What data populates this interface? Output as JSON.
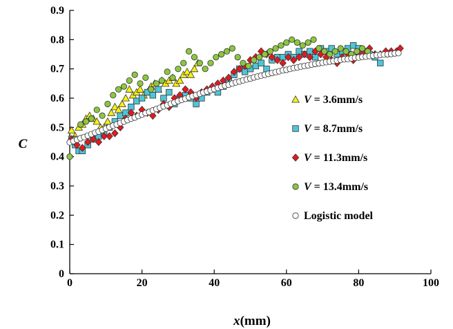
{
  "chart_data": {
    "type": "scatter",
    "xlabel_var": "x",
    "xlabel_unit": "(mm)",
    "ylabel": "C",
    "xlim": [
      0,
      100
    ],
    "ylim": [
      0,
      0.9
    ],
    "xticks": [
      "0",
      "20",
      "40",
      "60",
      "80",
      "100"
    ],
    "yticks": [
      "0",
      "0.1",
      "0.2",
      "0.3",
      "0.4",
      "0.5",
      "0.6",
      "0.7",
      "0.8",
      "0.9"
    ],
    "grid": false,
    "legend_position": "right",
    "series": [
      {
        "legend_var": "V",
        "legend_rest": " = 3.6mm/s",
        "marker": "triangle",
        "color": "#f5f011",
        "x": [
          0.5,
          1.5,
          2.5,
          3.5,
          4.5,
          5.5,
          6.5,
          7.5,
          8.5,
          9.5,
          10.5,
          11.5,
          12.5,
          13.5,
          14.5,
          15.5,
          16.5,
          17.5,
          18.5,
          19.5,
          20.5,
          21.5,
          22.5,
          23.5,
          24.5,
          25.5,
          26.5,
          27.5,
          28.5,
          29.5,
          30.5,
          31.5,
          32.5,
          33.5,
          34.5,
          35.5
        ],
        "y": [
          0.49,
          0.47,
          0.5,
          0.51,
          0.53,
          0.54,
          0.53,
          0.52,
          0.5,
          0.5,
          0.52,
          0.55,
          0.57,
          0.56,
          0.58,
          0.6,
          0.63,
          0.61,
          0.62,
          0.63,
          0.61,
          0.62,
          0.64,
          0.65,
          0.63,
          0.66,
          0.65,
          0.66,
          0.67,
          0.65,
          0.66,
          0.68,
          0.69,
          0.68,
          0.7,
          0.72
        ]
      },
      {
        "legend_var": "V",
        "legend_rest": " = 8.7mm/s",
        "marker": "square",
        "color": "#4fc4d8",
        "x": [
          0.5,
          1.5,
          2.5,
          3.5,
          5,
          6.5,
          8,
          9.5,
          11,
          12.5,
          14,
          15.5,
          17,
          18.5,
          20,
          21.5,
          23,
          24.5,
          26,
          27.5,
          29,
          30.5,
          32,
          33.5,
          35,
          36.5,
          38,
          39.5,
          41,
          42.5,
          44,
          45.5,
          47,
          48.5,
          50,
          51.5,
          53,
          54.5,
          56,
          57.5,
          59,
          60.5,
          62,
          63.5,
          65,
          66.5,
          68,
          69.5,
          71,
          72.5,
          74,
          75.5,
          77,
          78.5,
          80,
          81.5,
          83,
          84.5,
          86
        ],
        "y": [
          0.46,
          0.44,
          0.42,
          0.42,
          0.44,
          0.46,
          0.47,
          0.48,
          0.5,
          0.52,
          0.54,
          0.55,
          0.57,
          0.59,
          0.6,
          0.62,
          0.61,
          0.63,
          0.6,
          0.62,
          0.58,
          0.6,
          0.61,
          0.6,
          0.58,
          0.6,
          0.62,
          0.63,
          0.62,
          0.64,
          0.66,
          0.68,
          0.7,
          0.69,
          0.7,
          0.71,
          0.72,
          0.7,
          0.73,
          0.74,
          0.74,
          0.75,
          0.74,
          0.76,
          0.75,
          0.76,
          0.74,
          0.77,
          0.76,
          0.77,
          0.75,
          0.76,
          0.77,
          0.78,
          0.77,
          0.76,
          0.75,
          0.74,
          0.72
        ]
      },
      {
        "legend_var": "V",
        "legend_rest": " = 11.3mm/s",
        "marker": "diamond",
        "color": "#e8171e",
        "x": [
          0.5,
          2,
          3.5,
          5,
          6.5,
          8,
          9.5,
          11,
          12.5,
          14,
          15.5,
          17,
          18.5,
          20,
          21.5,
          23,
          24.5,
          26,
          27.5,
          29,
          30.5,
          32,
          33.5,
          35,
          36.5,
          38,
          39.5,
          41,
          42.5,
          44,
          45.5,
          47,
          48.5,
          50,
          51.5,
          53,
          54.5,
          56,
          57.5,
          59,
          60.5,
          62,
          63.5,
          65,
          66.5,
          68,
          69.5,
          71,
          72.5,
          74,
          75.5,
          77,
          78.5,
          80,
          81.5,
          83,
          84.5,
          86,
          87.5,
          89,
          90.5,
          91.5
        ],
        "y": [
          0.46,
          0.44,
          0.43,
          0.45,
          0.46,
          0.45,
          0.47,
          0.47,
          0.48,
          0.5,
          0.53,
          0.55,
          0.54,
          0.56,
          0.55,
          0.54,
          0.56,
          0.58,
          0.57,
          0.6,
          0.61,
          0.63,
          0.62,
          0.6,
          0.62,
          0.63,
          0.64,
          0.65,
          0.66,
          0.67,
          0.69,
          0.7,
          0.71,
          0.73,
          0.74,
          0.76,
          0.75,
          0.74,
          0.73,
          0.72,
          0.74,
          0.73,
          0.74,
          0.75,
          0.74,
          0.76,
          0.75,
          0.74,
          0.73,
          0.72,
          0.74,
          0.75,
          0.73,
          0.75,
          0.76,
          0.77,
          0.75,
          0.75,
          0.76,
          0.76,
          0.76,
          0.77
        ]
      },
      {
        "legend_var": "V",
        "legend_rest": " = 13.4mm/s",
        "marker": "circle",
        "color": "#8cc63f",
        "x": [
          0,
          1.5,
          3,
          4.5,
          6,
          7.5,
          9,
          10.5,
          12,
          13.5,
          15,
          16.5,
          18,
          19.5,
          21,
          22.5,
          24,
          25.5,
          27,
          28.5,
          30,
          31.5,
          33,
          34.5,
          36,
          37.5,
          39,
          40.5,
          42,
          43.5,
          45,
          46.5,
          48,
          49.5,
          51,
          52.5,
          54,
          55.5,
          57,
          58.5,
          60,
          61.5,
          63,
          64.5,
          66,
          67.5,
          69,
          70.5,
          72,
          73.5,
          75,
          76.5,
          78,
          79.5,
          81,
          82.5
        ],
        "y": [
          0.4,
          0.46,
          0.51,
          0.52,
          0.53,
          0.56,
          0.54,
          0.58,
          0.61,
          0.63,
          0.64,
          0.66,
          0.68,
          0.65,
          0.67,
          0.63,
          0.65,
          0.66,
          0.69,
          0.67,
          0.7,
          0.72,
          0.76,
          0.74,
          0.72,
          0.7,
          0.72,
          0.74,
          0.75,
          0.76,
          0.77,
          0.74,
          0.72,
          0.71,
          0.73,
          0.74,
          0.75,
          0.76,
          0.77,
          0.78,
          0.79,
          0.8,
          0.79,
          0.78,
          0.79,
          0.8,
          0.77,
          0.76,
          0.75,
          0.76,
          0.77,
          0.76,
          0.75,
          0.76,
          0.77,
          0.76
        ]
      },
      {
        "legend_label": "Logistic model",
        "marker": "circle",
        "color": "#ffffff",
        "x": [
          0,
          1,
          2,
          3,
          4,
          5,
          6,
          7,
          8,
          9,
          10,
          11,
          12,
          13,
          14,
          15,
          16,
          17,
          18,
          19,
          20,
          21,
          22,
          23,
          24,
          25,
          26,
          27,
          28,
          29,
          30,
          31,
          32,
          33,
          34,
          35,
          36,
          37,
          38,
          39,
          40,
          41,
          42,
          43,
          44,
          45,
          46,
          47,
          48,
          49,
          50,
          51,
          52,
          53,
          54,
          55,
          56,
          57,
          58,
          59,
          60,
          61,
          62,
          63,
          64,
          65,
          66,
          67,
          68,
          69,
          70,
          71,
          72,
          73,
          74,
          75,
          76,
          77,
          78,
          79,
          80,
          81,
          82,
          83,
          84,
          85,
          86,
          87,
          88,
          89,
          90,
          91
        ],
        "y": [
          0.449,
          0.453,
          0.458,
          0.463,
          0.467,
          0.472,
          0.477,
          0.482,
          0.486,
          0.491,
          0.496,
          0.501,
          0.506,
          0.51,
          0.515,
          0.52,
          0.525,
          0.53,
          0.534,
          0.539,
          0.544,
          0.549,
          0.553,
          0.558,
          0.563,
          0.567,
          0.572,
          0.576,
          0.581,
          0.585,
          0.59,
          0.594,
          0.598,
          0.603,
          0.607,
          0.611,
          0.615,
          0.619,
          0.623,
          0.627,
          0.631,
          0.635,
          0.639,
          0.643,
          0.646,
          0.65,
          0.654,
          0.657,
          0.661,
          0.664,
          0.667,
          0.671,
          0.674,
          0.677,
          0.68,
          0.683,
          0.686,
          0.689,
          0.692,
          0.695,
          0.697,
          0.7,
          0.703,
          0.705,
          0.708,
          0.71,
          0.712,
          0.715,
          0.717,
          0.719,
          0.721,
          0.723,
          0.725,
          0.727,
          0.729,
          0.731,
          0.733,
          0.734,
          0.736,
          0.738,
          0.739,
          0.741,
          0.742,
          0.744,
          0.745,
          0.747,
          0.748,
          0.749,
          0.75,
          0.751,
          0.753,
          0.754
        ]
      }
    ]
  }
}
